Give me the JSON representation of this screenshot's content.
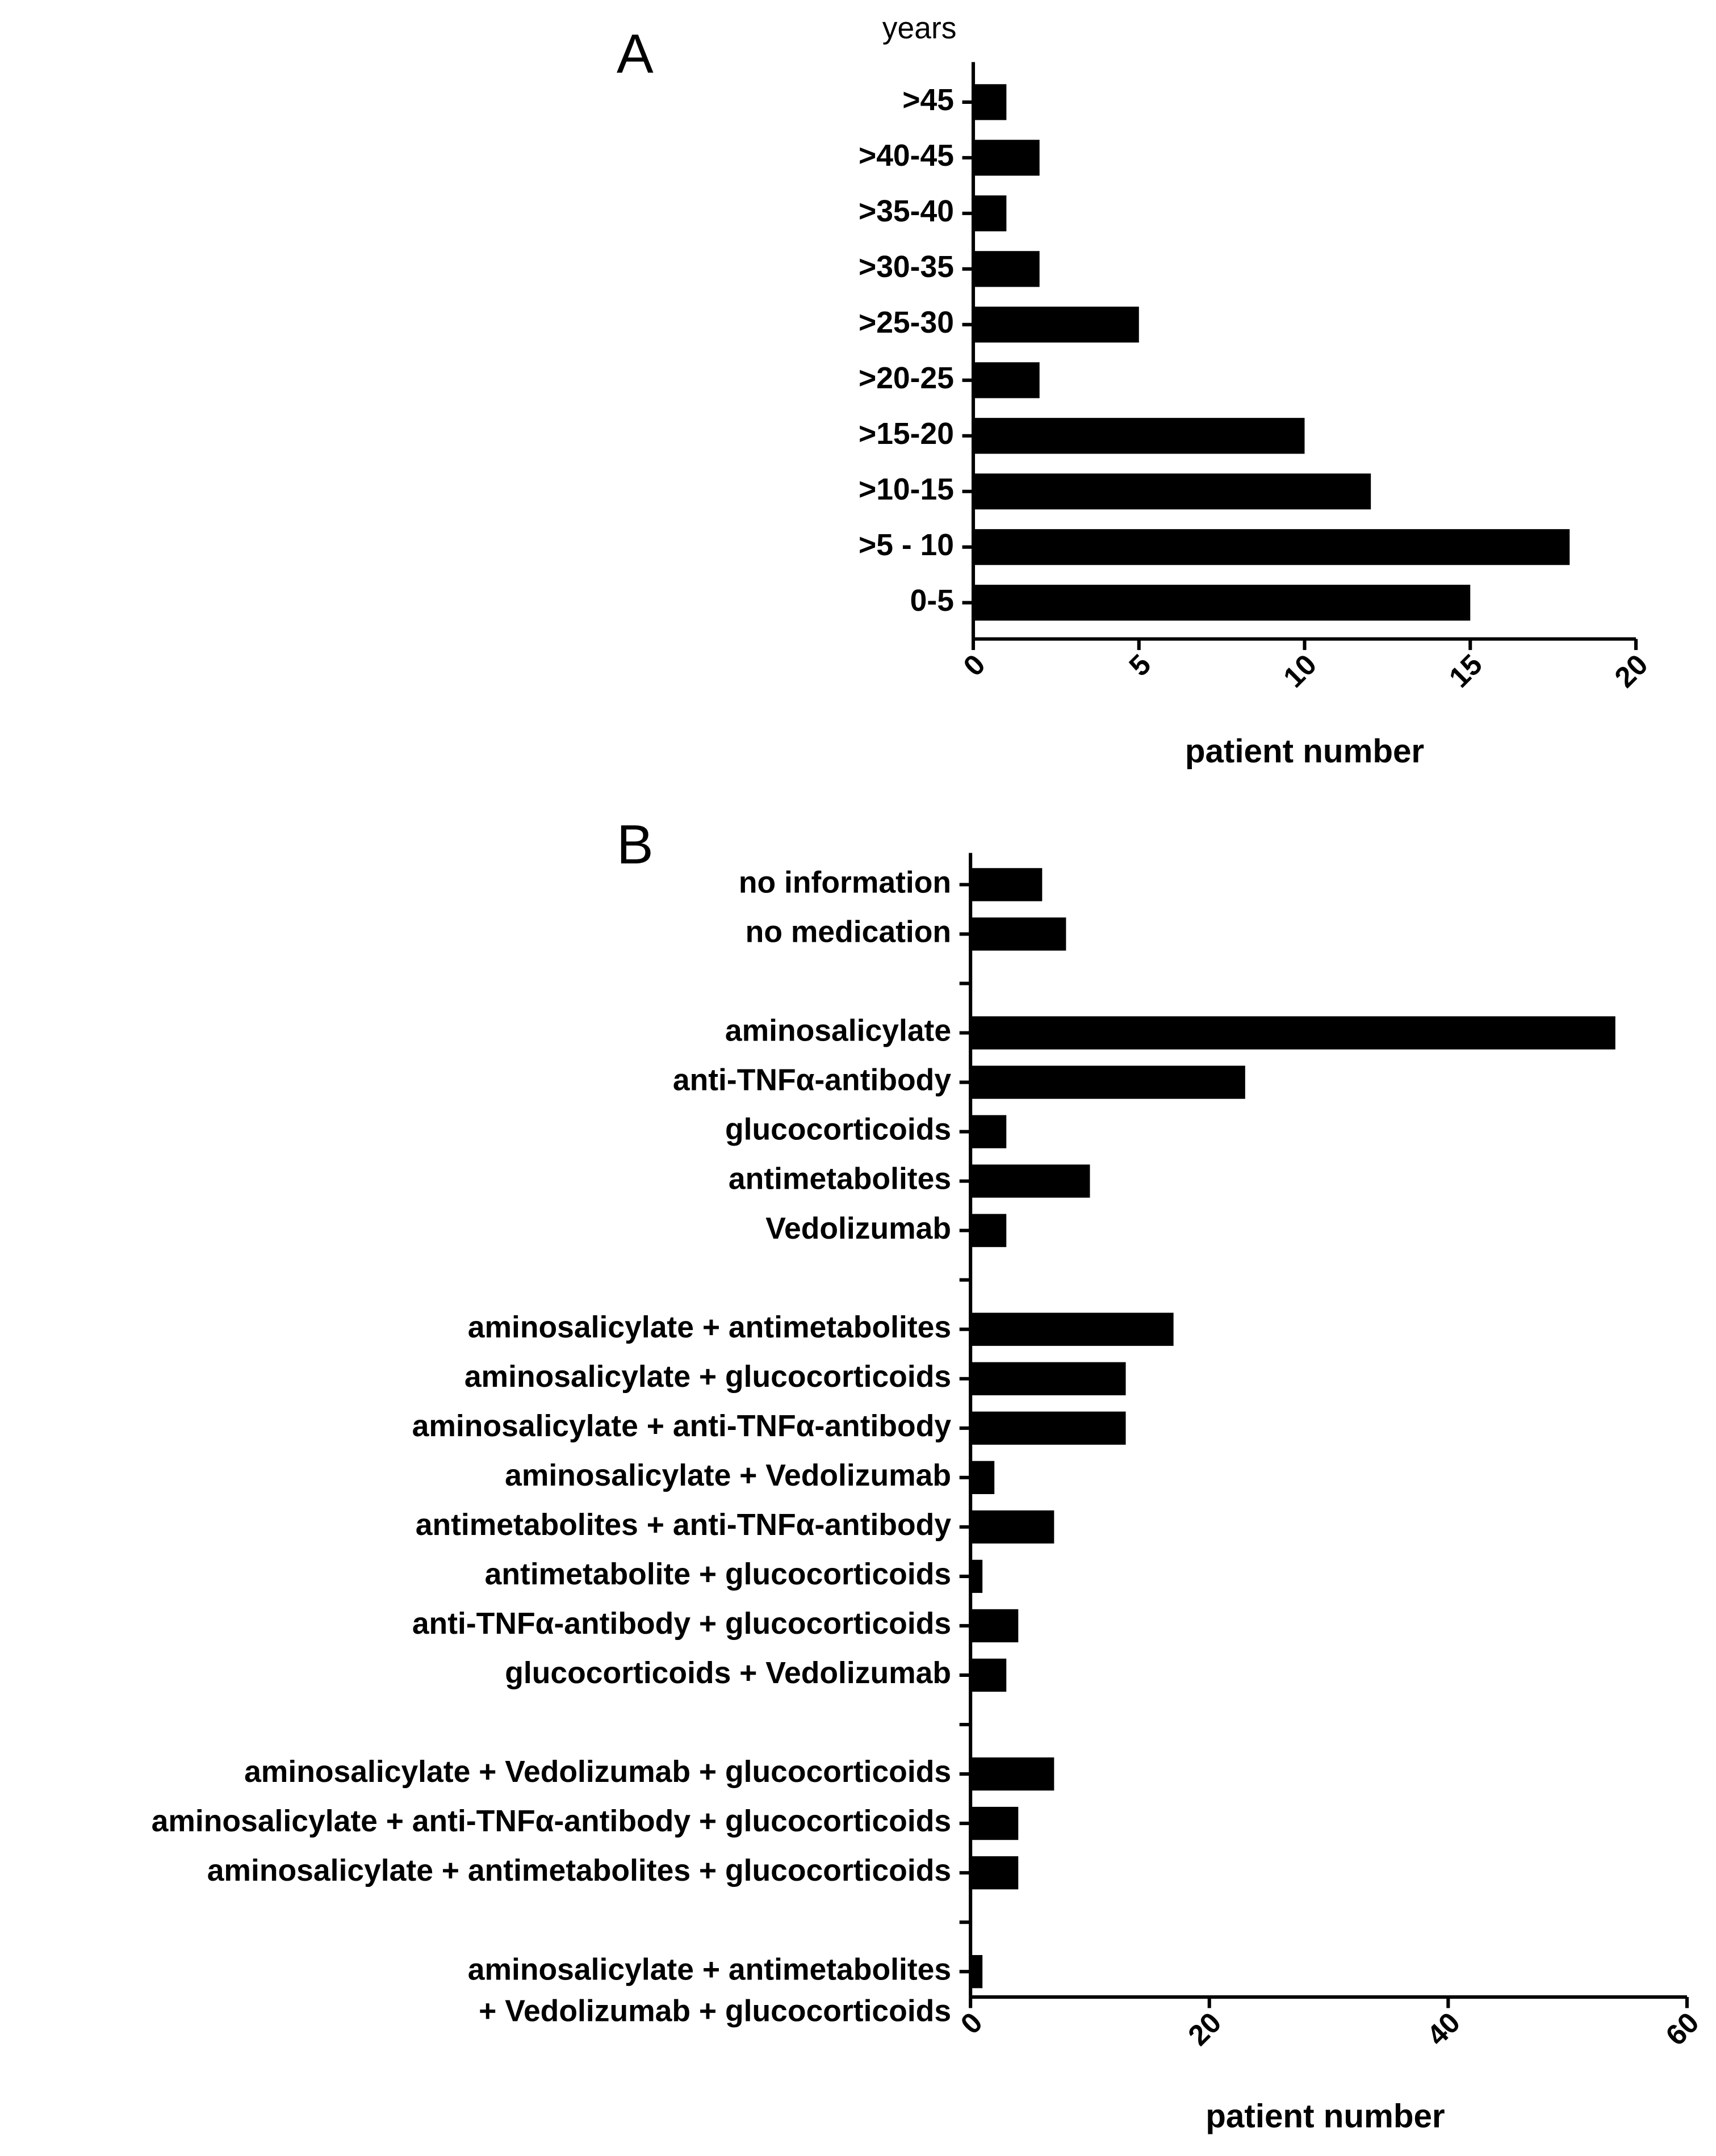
{
  "chart_data": [
    {
      "type": "bar",
      "orientation": "horizontal",
      "panel_label": "A",
      "y_label": "years",
      "x_label": "patient number",
      "categories": [
        ">45",
        ">40-45",
        ">35-40",
        ">30-35",
        ">25-30",
        ">20-25",
        ">15-20",
        ">10-15",
        ">5 - 10",
        "0-5"
      ],
      "values": [
        1,
        2,
        1,
        2,
        5,
        2,
        10,
        12,
        18,
        15
      ],
      "color": "#000000",
      "xlim": [
        0,
        20
      ],
      "xticks": [
        0,
        5,
        10,
        15,
        20
      ],
      "grid": false
    },
    {
      "type": "bar",
      "orientation": "horizontal",
      "panel_label": "B",
      "x_label": "patient number",
      "categories": [
        "no information",
        "no medication",
        null,
        "aminosalicylate",
        "anti-TNFα-antibody",
        "glucocorticoids",
        "antimetabolites",
        "Vedolizumab",
        null,
        "aminosalicylate + antimetabolites",
        "aminosalicylate + glucocorticoids",
        "aminosalicylate + anti-TNFα-antibody",
        "aminosalicylate + Vedolizumab",
        "antimetabolites + anti-TNFα-antibody",
        "antimetabolite + glucocorticoids",
        "anti-TNFα-antibody + glucocorticoids",
        "glucocorticoids + Vedolizumab",
        null,
        "aminosalicylate + Vedolizumab + glucocorticoids",
        "aminosalicylate + anti-TNFα-antibody + glucocorticoids",
        "aminosalicylate + antimetabolites + glucocorticoids",
        null,
        [
          "aminosalicylate + antimetabolites",
          "+ Vedolizumab + glucocorticoids"
        ]
      ],
      "values": [
        6,
        8,
        null,
        54,
        23,
        3,
        10,
        3,
        null,
        17,
        13,
        13,
        2,
        7,
        1,
        4,
        3,
        null,
        7,
        4,
        4,
        null,
        1
      ],
      "color": "#000000",
      "xlim": [
        0,
        60
      ],
      "xticks": [
        0,
        20,
        40,
        60
      ],
      "grid": false
    }
  ]
}
